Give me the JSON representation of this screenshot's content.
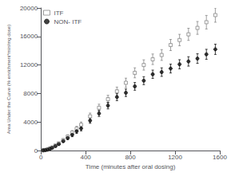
{
  "chart_data": {
    "type": "scatter",
    "xlabel": "Time (minutes after oral dosing)",
    "ylabel": "Area Under the Curve (% enrichment*min/mg dose)",
    "xlim": [
      0,
      1600
    ],
    "ylim": [
      0,
      20000
    ],
    "xticks": [
      0,
      400,
      800,
      1200,
      1600
    ],
    "yticks": [
      0,
      4000,
      8000,
      12000,
      16000,
      20000
    ],
    "grid": false,
    "legend": "upper left",
    "series": [
      {
        "name": "ITF",
        "color": "#888888",
        "marker": "open_square",
        "x": [
          20,
          40,
          60,
          80,
          100,
          130,
          160,
          200,
          240,
          280,
          320,
          360,
          440,
          520,
          600,
          680,
          760,
          840,
          920,
          1000,
          1080,
          1160,
          1240,
          1320,
          1400,
          1480,
          1560
        ],
        "values": [
          30,
          80,
          160,
          280,
          430,
          700,
          1000,
          1450,
          1950,
          2500,
          3050,
          3600,
          4800,
          6000,
          7200,
          8300,
          9500,
          10900,
          12000,
          12800,
          13400,
          14800,
          15500,
          16300,
          17200,
          18000,
          19000
        ],
        "yerr": [
          20,
          40,
          60,
          80,
          100,
          130,
          160,
          200,
          250,
          300,
          350,
          400,
          450,
          500,
          550,
          600,
          650,
          700,
          720,
          740,
          760,
          780,
          800,
          850,
          900,
          950,
          1000
        ]
      },
      {
        "name": "NON- ITF",
        "color": "#111111",
        "marker": "circle",
        "x": [
          20,
          40,
          60,
          80,
          100,
          130,
          160,
          200,
          240,
          280,
          320,
          360,
          440,
          520,
          600,
          680,
          760,
          840,
          920,
          1000,
          1080,
          1160,
          1240,
          1320,
          1400,
          1480,
          1560
        ],
        "values": [
          20,
          60,
          120,
          230,
          370,
          620,
          900,
          1320,
          1750,
          2200,
          2700,
          3100,
          4200,
          5200,
          6300,
          7500,
          8100,
          9000,
          9800,
          10700,
          11000,
          11500,
          12100,
          12500,
          12900,
          13500,
          14200
        ],
        "yerr": [
          15,
          30,
          50,
          70,
          90,
          110,
          140,
          180,
          220,
          260,
          300,
          340,
          380,
          420,
          460,
          500,
          520,
          540,
          560,
          580,
          600,
          620,
          640,
          660,
          680,
          700,
          720
        ]
      }
    ]
  }
}
